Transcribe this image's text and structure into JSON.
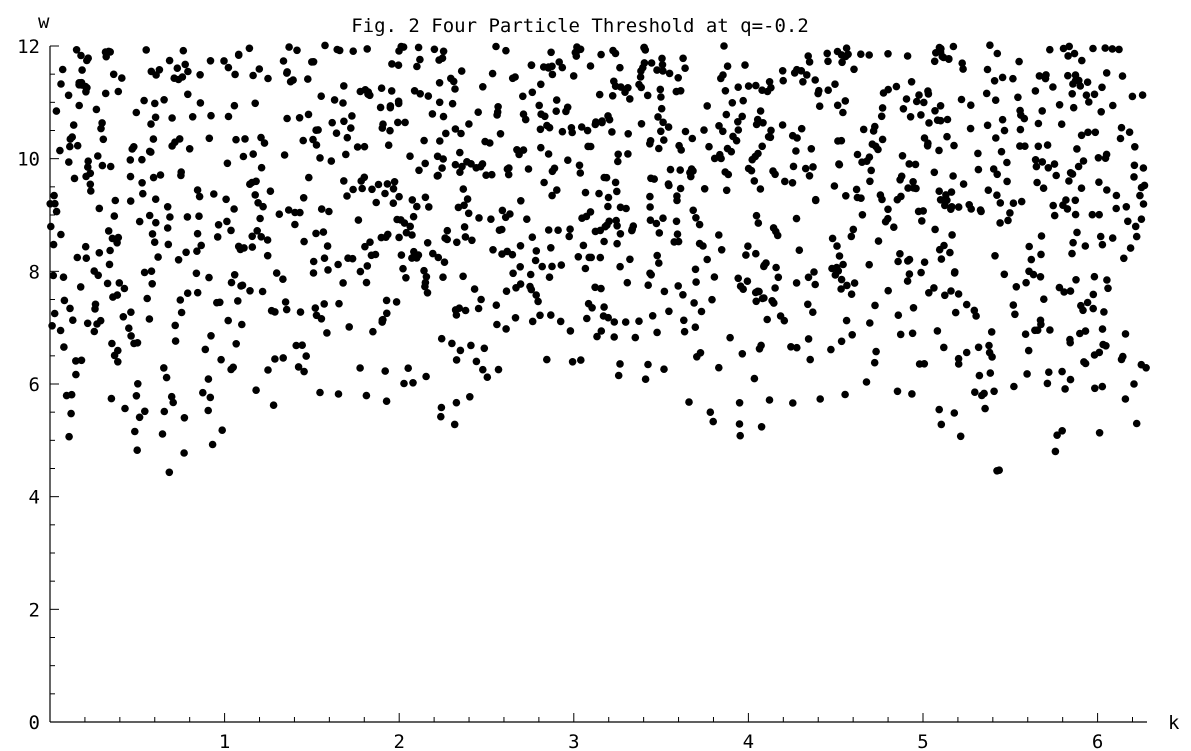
{
  "chart_data": {
    "type": "scatter",
    "title": "Fig. 2 Four Particle Threshold at q=-0.2",
    "xlabel": "k",
    "ylabel": "w",
    "xlim": [
      0,
      6.283
    ],
    "ylim": [
      0,
      12
    ],
    "xticks": [
      "1",
      "2",
      "3",
      "4",
      "5",
      "6"
    ],
    "yticks": [
      "0",
      "2",
      "4",
      "6",
      "8",
      "10",
      "12"
    ],
    "grid": false,
    "marker_color": "#000000",
    "q": -0.2,
    "point_count": 1350
  }
}
